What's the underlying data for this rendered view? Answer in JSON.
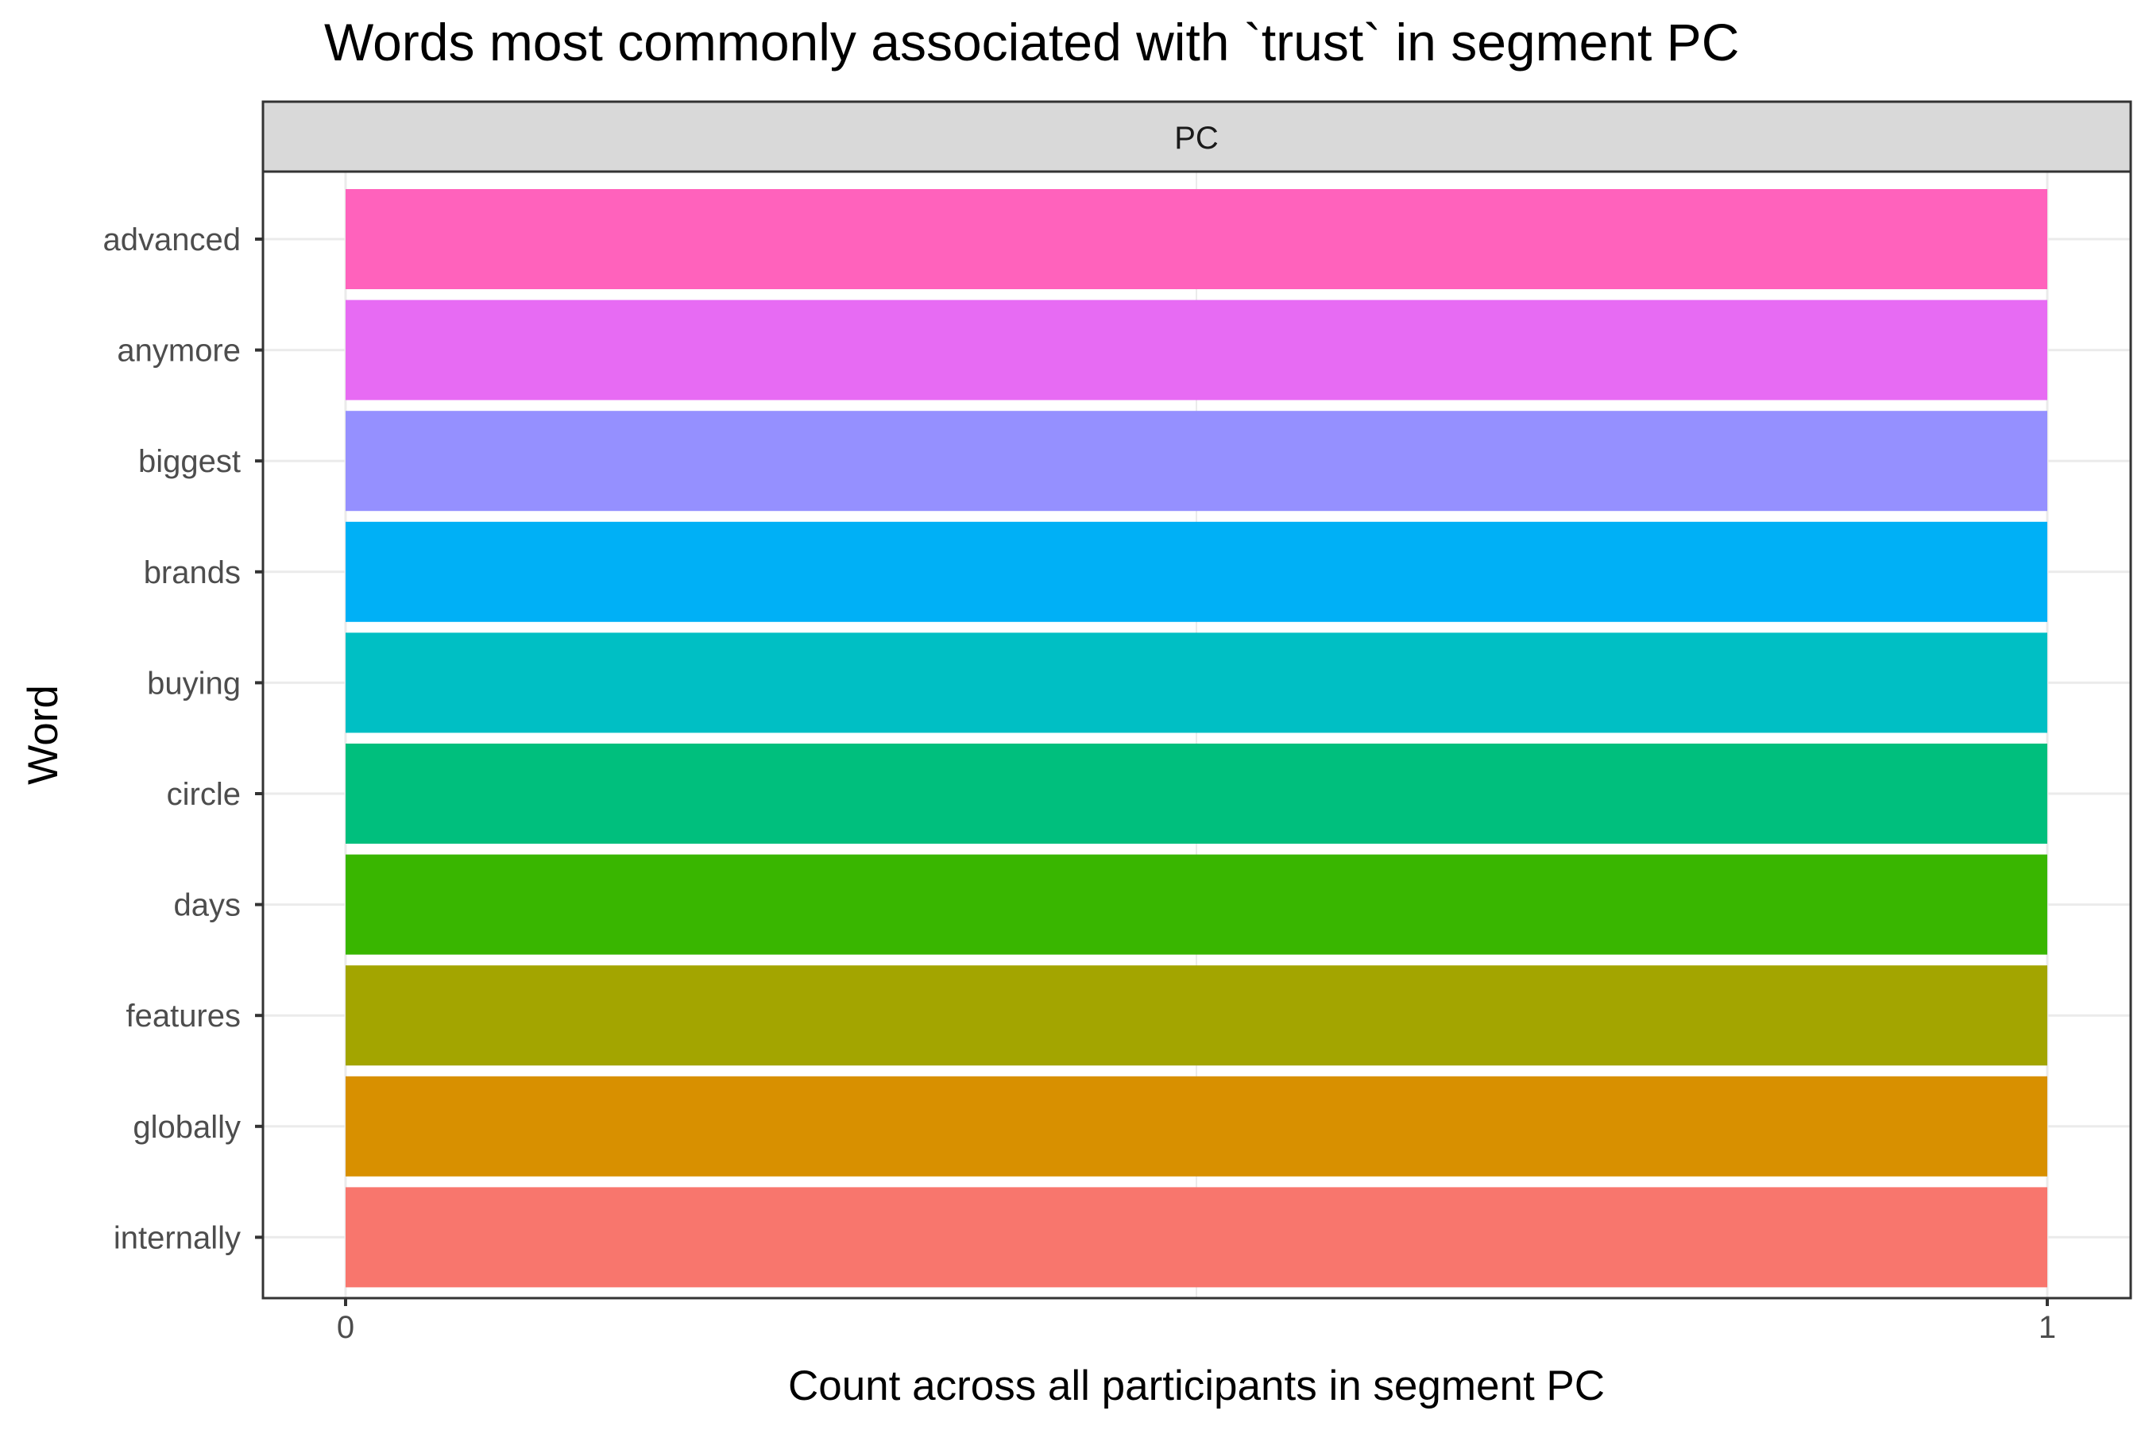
{
  "chart_data": {
    "type": "bar",
    "orientation": "horizontal",
    "title": "Words most commonly associated with `trust` in segment PC",
    "facet_label": "PC",
    "xlabel": "Count across all participants in segment PC",
    "ylabel": "Word",
    "xlim": [
      0,
      1
    ],
    "x_ticks": [
      "0",
      "1"
    ],
    "grid": true,
    "legend": "none",
    "categories": [
      "advanced",
      "anymore",
      "biggest",
      "brands",
      "buying",
      "circle",
      "days",
      "features",
      "globally",
      "internally"
    ],
    "values": [
      1,
      1,
      1,
      1,
      1,
      1,
      1,
      1,
      1,
      1
    ],
    "colors": [
      "#FF62BC",
      "#E76BF3",
      "#9590FF",
      "#00B0F6",
      "#00BFC4",
      "#00BF7D",
      "#39B600",
      "#A3A500",
      "#D89000",
      "#F8766D"
    ]
  }
}
